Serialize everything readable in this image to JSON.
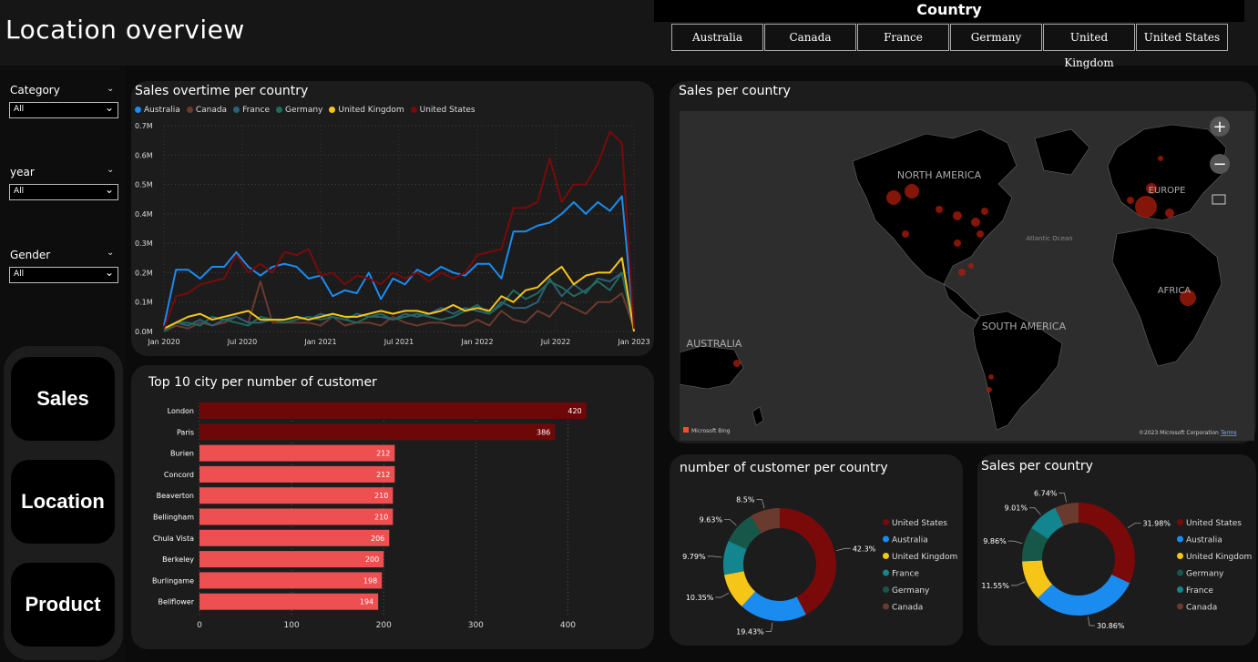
{
  "page_title": "Location overview",
  "country_slicer": {
    "title": "Country",
    "options": [
      "Australia",
      "Canada",
      "France",
      "Germany",
      "United Kingdom",
      "United States"
    ]
  },
  "filters": [
    {
      "label": "Category",
      "value": "All"
    },
    {
      "label": "year",
      "value": "All"
    },
    {
      "label": "Gender",
      "value": "All"
    }
  ],
  "nav": {
    "sales": "Sales",
    "location": "Location",
    "product": "Product"
  },
  "colors": {
    "australia": "#1a8cf0",
    "canada": "#6b3a2e",
    "france": "#2c5f78",
    "germany": "#1e6b5c",
    "united_kingdom": "#f5c518",
    "united_states": "#7a0a0a",
    "bar_top": "#6e0808",
    "bar_other": "#ee4f50"
  },
  "line_chart": {
    "title": "Sales overtime per country",
    "chart_data": {
      "type": "line",
      "x_labels": [
        "Jan 2020",
        "Jul 2020",
        "Jan 2021",
        "Jul 2021",
        "Jan 2022",
        "Jul 2022",
        "Jan 2023"
      ],
      "y_ticks": [
        "0.0M",
        "0.1M",
        "0.2M",
        "0.3M",
        "0.4M",
        "0.5M",
        "0.6M",
        "0.7M"
      ],
      "ylim": [
        0,
        0.7
      ],
      "series": [
        {
          "name": "Australia",
          "color": "#1a8cf0",
          "values": [
            0.02,
            0.21,
            0.21,
            0.18,
            0.22,
            0.22,
            0.27,
            0.22,
            0.19,
            0.22,
            0.23,
            0.22,
            0.18,
            0.19,
            0.12,
            0.14,
            0.13,
            0.2,
            0.11,
            0.18,
            0.16,
            0.21,
            0.19,
            0.22,
            0.2,
            0.19,
            0.23,
            0.23,
            0.18,
            0.34,
            0.34,
            0.36,
            0.37,
            0.4,
            0.44,
            0.4,
            0.44,
            0.41,
            0.46,
            0.01
          ]
        },
        {
          "name": "Canada",
          "color": "#6b3a2e",
          "values": [
            0.0,
            0.02,
            0.01,
            0.03,
            0.02,
            0.03,
            0.05,
            0.03,
            0.17,
            0.03,
            0.03,
            0.03,
            0.03,
            0.02,
            0.05,
            0.02,
            0.03,
            0.03,
            0.02,
            0.05,
            0.03,
            0.02,
            0.03,
            0.03,
            0.02,
            0.02,
            0.04,
            0.02,
            0.07,
            0.04,
            0.03,
            0.07,
            0.05,
            0.1,
            0.08,
            0.06,
            0.1,
            0.1,
            0.13,
            0.01
          ]
        },
        {
          "name": "France",
          "color": "#2c5f78",
          "values": [
            0.0,
            0.03,
            0.02,
            0.04,
            0.02,
            0.04,
            0.05,
            0.03,
            0.03,
            0.04,
            0.04,
            0.05,
            0.04,
            0.06,
            0.05,
            0.04,
            0.06,
            0.05,
            0.05,
            0.04,
            0.06,
            0.05,
            0.06,
            0.08,
            0.06,
            0.08,
            0.07,
            0.06,
            0.1,
            0.08,
            0.08,
            0.1,
            0.18,
            0.12,
            0.16,
            0.13,
            0.18,
            0.17,
            0.2,
            0.0
          ]
        },
        {
          "name": "Germany",
          "color": "#1e6b5c",
          "values": [
            0.0,
            0.03,
            0.03,
            0.02,
            0.05,
            0.04,
            0.03,
            0.02,
            0.05,
            0.04,
            0.03,
            0.04,
            0.05,
            0.04,
            0.05,
            0.04,
            0.03,
            0.05,
            0.06,
            0.04,
            0.05,
            0.06,
            0.05,
            0.04,
            0.05,
            0.07,
            0.09,
            0.06,
            0.09,
            0.14,
            0.11,
            0.13,
            0.17,
            0.15,
            0.12,
            0.14,
            0.17,
            0.14,
            0.2,
            0.0
          ]
        },
        {
          "name": "United Kingdom",
          "color": "#f5c518",
          "values": [
            0.01,
            0.03,
            0.05,
            0.06,
            0.04,
            0.05,
            0.06,
            0.07,
            0.04,
            0.04,
            0.04,
            0.05,
            0.04,
            0.05,
            0.06,
            0.05,
            0.05,
            0.06,
            0.07,
            0.06,
            0.07,
            0.07,
            0.06,
            0.07,
            0.09,
            0.07,
            0.08,
            0.07,
            0.12,
            0.1,
            0.14,
            0.15,
            0.19,
            0.22,
            0.16,
            0.19,
            0.2,
            0.2,
            0.25,
            0.0
          ]
        },
        {
          "name": "United States",
          "color": "#7a0a0a",
          "values": [
            0.01,
            0.12,
            0.13,
            0.16,
            0.17,
            0.18,
            0.26,
            0.2,
            0.23,
            0.2,
            0.27,
            0.26,
            0.28,
            0.19,
            0.2,
            0.16,
            0.19,
            0.18,
            0.16,
            0.2,
            0.18,
            0.2,
            0.17,
            0.2,
            0.18,
            0.2,
            0.26,
            0.27,
            0.28,
            0.42,
            0.42,
            0.44,
            0.59,
            0.44,
            0.5,
            0.5,
            0.57,
            0.68,
            0.64,
            0.01
          ]
        }
      ]
    }
  },
  "bar_chart": {
    "title": "Top 10 city per number of customer",
    "chart_data": {
      "type": "bar",
      "orientation": "horizontal",
      "categories": [
        "London",
        "Paris",
        "Burien",
        "Concord",
        "Beaverton",
        "Bellingham",
        "Chula Vista",
        "Berkeley",
        "Burlingame",
        "Bellflower"
      ],
      "values": [
        420,
        386,
        212,
        212,
        210,
        210,
        206,
        200,
        198,
        194
      ],
      "value_labels": [
        "420",
        "386",
        "212",
        "212",
        "210",
        "210",
        "206",
        "200",
        "198",
        "194"
      ],
      "x_ticks": [
        "0",
        "100",
        "200",
        "300",
        "400"
      ],
      "xlim": [
        0,
        450
      ]
    }
  },
  "map": {
    "title": "Sales per country",
    "labels": {
      "north_america": "NORTH AMERICA",
      "south_america": "SOUTH AMERICA",
      "australia": "AUSTRALIA",
      "europe": "EUROPE",
      "africa": "AFRICA",
      "atlantic": "Atlantic Ocean"
    },
    "bing": "Microsoft Bing",
    "copyright": "©2023 Microsoft Corporation",
    "terms": "Terms",
    "zoom_in": "+",
    "zoom_out": "−"
  },
  "donut_customers": {
    "title": "number of customer per country",
    "chart_data": {
      "type": "pie",
      "categories": [
        "United States",
        "Australia",
        "United Kingdom",
        "France",
        "Germany",
        "Canada"
      ],
      "values": [
        42.3,
        19.43,
        10.35,
        9.79,
        9.63,
        8.5
      ],
      "labels": [
        "42.3%",
        "19.43%",
        "10.35%",
        "9.79%",
        "9.63%",
        "8.5%"
      ]
    }
  },
  "donut_sales": {
    "title": "Sales per country",
    "chart_data": {
      "type": "pie",
      "categories": [
        "United States",
        "Australia",
        "United Kingdom",
        "Germany",
        "France",
        "Canada"
      ],
      "values": [
        31.98,
        30.86,
        11.55,
        9.86,
        9.01,
        6.74
      ],
      "labels": [
        "31.98%",
        "30.86%",
        "11.55%",
        "9.86%",
        "9.01%",
        "6.74%"
      ]
    }
  }
}
